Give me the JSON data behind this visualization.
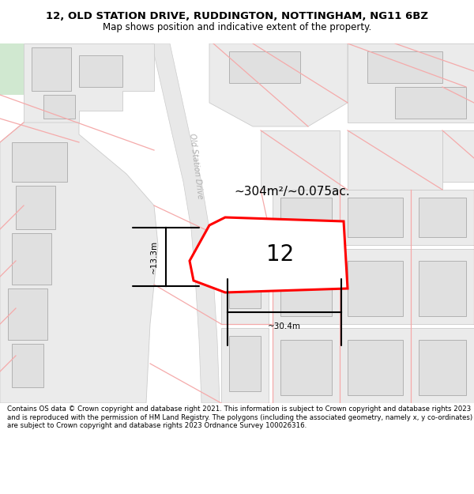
{
  "title_line1": "12, OLD STATION DRIVE, RUDDINGTON, NOTTINGHAM, NG11 6BZ",
  "title_line2": "Map shows position and indicative extent of the property.",
  "footer_text": "Contains OS data © Crown copyright and database right 2021. This information is subject to Crown copyright and database rights 2023 and is reproduced with the permission of HM Land Registry. The polygons (including the associated geometry, namely x, y co-ordinates) are subject to Crown copyright and database rights 2023 Ordnance Survey 100026316.",
  "area_label": "~304m²/~0.075ac.",
  "number_label": "12",
  "width_label": "~30.4m",
  "height_label": "~13.3m",
  "road_label": "Old Station Drive",
  "map_bg": "#ffffff",
  "building_fill": "#e0e0e0",
  "building_edge": "#aaaaaa",
  "property_fill": "#ffffff",
  "property_edge": "#ff0000",
  "road_line_color": "#f5aaaa",
  "gray_road_color": "#cccccc",
  "green_patch_color": "#d0e8d0",
  "title_fontsize": 9.5,
  "subtitle_fontsize": 8.5,
  "footer_fontsize": 6.2
}
